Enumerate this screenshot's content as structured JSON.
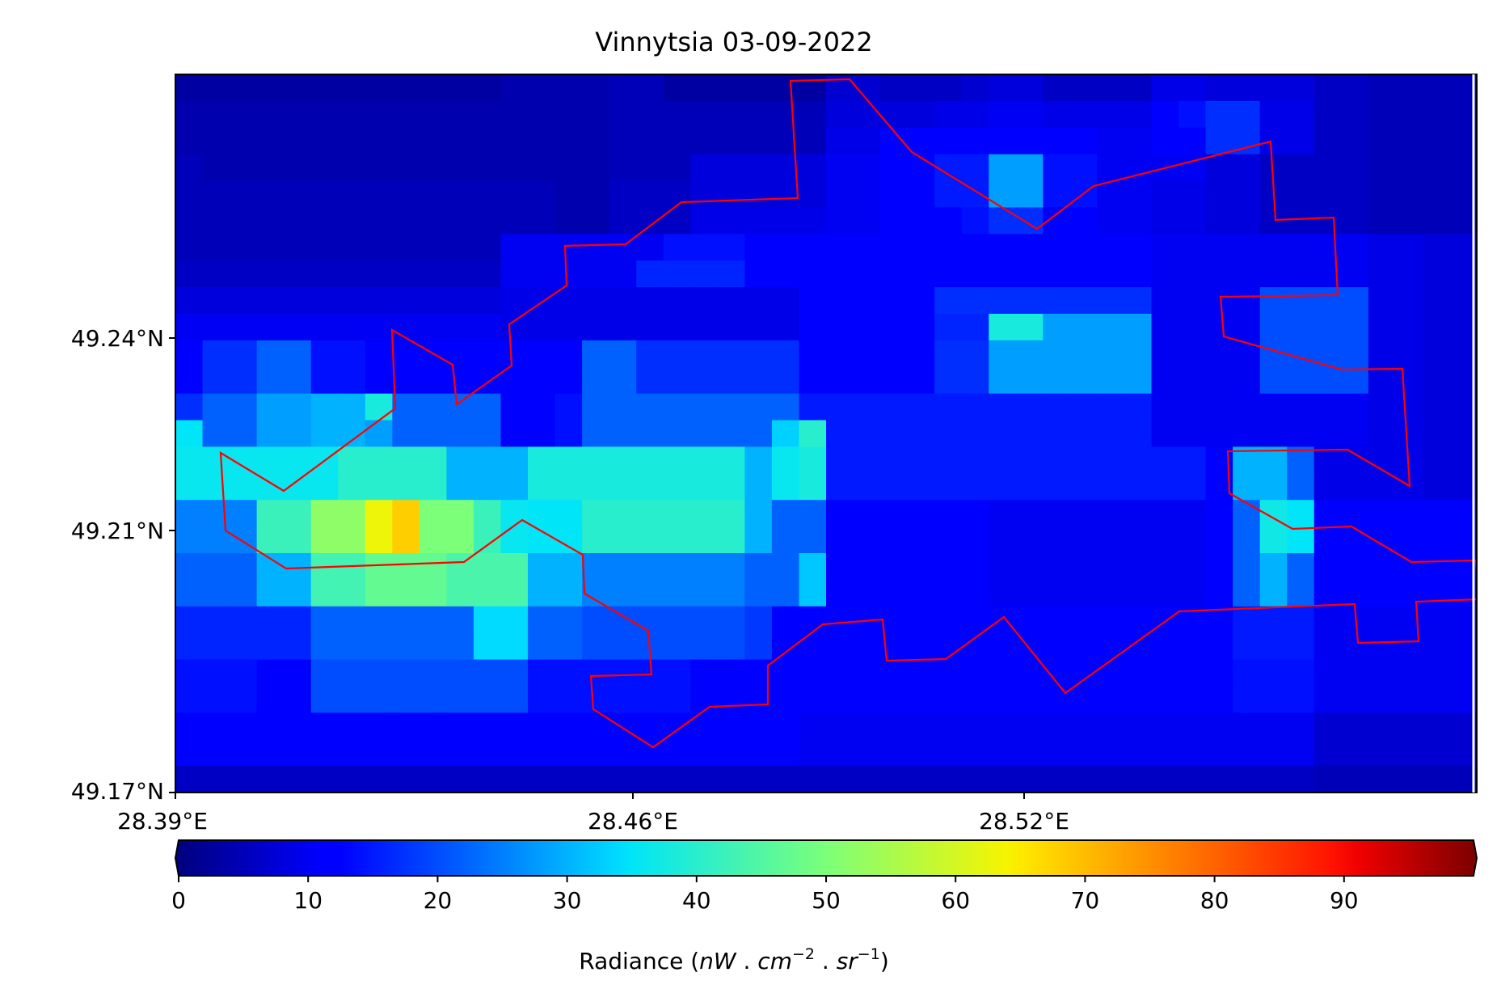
{
  "chart_data": {
    "type": "heatmap",
    "title": "Vinnytsia 03-09-2022",
    "colormap": "jet",
    "vmin": 0,
    "vmax": 100,
    "x_ticks": [
      "28.39°E",
      "28.46°E",
      "28.52°E"
    ],
    "y_ticks": [
      "49.24°N",
      "49.21°N",
      "49.17°N"
    ],
    "grid_cols": 48,
    "grid_rows": 27,
    "lon_range": [
      28.39,
      28.6
    ],
    "lat_range": [
      49.17,
      49.281
    ],
    "colorbar": {
      "ticks": [
        "0",
        "10",
        "20",
        "30",
        "40",
        "50",
        "60",
        "70",
        "80",
        "90"
      ],
      "label_prefix": "Radiance (",
      "label_nW": "nW",
      "label_dot1": " . ",
      "label_cm": "cm",
      "label_cm_exp": "−2",
      "label_dot2": " . ",
      "label_sr": "sr",
      "label_sr_exp": "−1",
      "label_suffix": ")",
      "extend": "both"
    },
    "radiance_grid": [
      [
        3,
        3,
        3,
        3,
        3,
        3,
        3,
        3,
        3,
        3,
        3,
        3,
        4,
        4,
        4,
        4,
        5,
        5,
        3,
        3,
        3,
        3,
        3,
        3,
        7,
        7,
        6,
        6,
        6,
        7,
        8,
        8,
        6,
        6,
        6,
        6,
        9,
        9,
        8,
        8,
        8,
        8,
        6,
        6,
        5,
        5,
        5,
        5
      ],
      [
        4,
        4,
        4,
        4,
        4,
        4,
        4,
        4,
        4,
        4,
        4,
        4,
        4,
        4,
        4,
        4,
        5,
        5,
        5,
        5,
        5,
        5,
        5,
        5,
        8,
        8,
        8,
        8,
        9,
        9,
        10,
        10,
        9,
        9,
        9,
        9,
        12,
        14,
        17,
        17,
        9,
        9,
        6,
        6,
        5,
        5,
        5,
        5
      ],
      [
        4,
        4,
        4,
        4,
        4,
        4,
        4,
        4,
        4,
        4,
        4,
        4,
        4,
        4,
        4,
        4,
        5,
        5,
        5,
        5,
        5,
        5,
        5,
        5,
        9,
        9,
        11,
        11,
        11,
        11,
        11,
        11,
        11,
        11,
        10,
        10,
        12,
        12,
        17,
        17,
        9,
        9,
        6,
        6,
        5,
        5,
        5,
        5
      ],
      [
        5,
        4,
        4,
        4,
        4,
        4,
        4,
        4,
        4,
        4,
        4,
        4,
        4,
        4,
        4,
        4,
        5,
        5,
        5,
        8,
        8,
        8,
        8,
        8,
        10,
        10,
        11,
        11,
        15,
        15,
        28,
        28,
        14,
        14,
        10,
        10,
        10,
        10,
        8,
        8,
        6,
        6,
        6,
        6,
        5,
        5,
        5,
        5
      ],
      [
        5,
        5,
        5,
        5,
        5,
        5,
        5,
        5,
        5,
        5,
        5,
        5,
        5,
        5,
        4,
        4,
        6,
        6,
        6,
        8,
        8,
        8,
        8,
        8,
        10,
        10,
        11,
        11,
        15,
        15,
        28,
        28,
        14,
        14,
        10,
        10,
        9,
        9,
        8,
        8,
        6,
        6,
        6,
        6,
        5,
        5,
        5,
        5
      ],
      [
        5,
        5,
        5,
        5,
        5,
        5,
        5,
        5,
        5,
        5,
        5,
        5,
        5,
        5,
        4,
        4,
        6,
        6,
        6,
        9,
        9,
        9,
        9,
        9,
        10,
        10,
        11,
        11,
        12,
        14,
        17,
        17,
        11,
        11,
        10,
        10,
        9,
        9,
        8,
        8,
        6,
        6,
        6,
        6,
        5,
        5,
        5,
        5
      ],
      [
        5,
        5,
        5,
        5,
        5,
        5,
        5,
        5,
        5,
        5,
        5,
        5,
        10,
        10,
        10,
        10,
        10,
        10,
        14,
        14,
        14,
        12,
        12,
        12,
        12,
        12,
        12,
        12,
        12,
        12,
        12,
        12,
        12,
        12,
        12,
        12,
        10,
        10,
        10,
        10,
        10,
        10,
        10,
        10,
        9,
        9,
        8,
        8
      ],
      [
        6,
        6,
        6,
        6,
        6,
        6,
        6,
        6,
        6,
        6,
        6,
        6,
        10,
        10,
        10,
        10,
        10,
        16,
        16,
        16,
        16,
        12,
        12,
        12,
        12,
        12,
        12,
        12,
        12,
        12,
        12,
        12,
        12,
        12,
        12,
        12,
        10,
        10,
        10,
        10,
        10,
        10,
        10,
        10,
        9,
        9,
        8,
        8
      ],
      [
        8,
        8,
        8,
        8,
        8,
        8,
        8,
        8,
        8,
        8,
        8,
        8,
        9,
        9,
        9,
        9,
        9,
        9,
        9,
        9,
        9,
        9,
        9,
        12,
        12,
        12,
        12,
        12,
        17,
        17,
        17,
        17,
        17,
        17,
        17,
        17,
        10,
        10,
        10,
        10,
        20,
        20,
        20,
        20,
        9,
        9,
        8,
        8
      ],
      [
        10,
        10,
        10,
        10,
        10,
        10,
        10,
        10,
        10,
        10,
        10,
        10,
        9,
        9,
        9,
        9,
        9,
        9,
        9,
        9,
        9,
        9,
        9,
        12,
        12,
        12,
        12,
        12,
        16,
        16,
        38,
        38,
        28,
        28,
        28,
        28,
        10,
        10,
        10,
        10,
        20,
        20,
        20,
        20,
        9,
        9,
        8,
        8
      ],
      [
        12,
        17,
        17,
        22,
        22,
        14,
        14,
        12,
        12,
        12,
        12,
        12,
        12,
        12,
        12,
        22,
        22,
        17,
        17,
        17,
        17,
        17,
        17,
        12,
        12,
        12,
        12,
        12,
        17,
        17,
        28,
        28,
        28,
        28,
        28,
        28,
        10,
        10,
        10,
        10,
        20,
        20,
        20,
        20,
        9,
        9,
        8,
        8
      ],
      [
        12,
        17,
        17,
        22,
        22,
        14,
        14,
        12,
        12,
        12,
        12,
        12,
        12,
        12,
        12,
        22,
        22,
        17,
        17,
        17,
        17,
        17,
        17,
        12,
        12,
        12,
        12,
        12,
        17,
        17,
        28,
        28,
        28,
        28,
        28,
        28,
        10,
        10,
        10,
        10,
        20,
        20,
        20,
        20,
        9,
        9,
        8,
        8
      ],
      [
        17,
        22,
        22,
        28,
        28,
        30,
        30,
        38,
        22,
        22,
        22,
        22,
        12,
        12,
        14,
        22,
        22,
        22,
        22,
        22,
        22,
        22,
        22,
        15,
        15,
        15,
        15,
        15,
        15,
        15,
        15,
        15,
        15,
        15,
        15,
        15,
        10,
        10,
        10,
        10,
        10,
        10,
        10,
        10,
        9,
        9,
        8,
        8
      ],
      [
        35,
        22,
        22,
        28,
        28,
        30,
        30,
        28,
        22,
        22,
        22,
        22,
        12,
        12,
        14,
        22,
        22,
        22,
        22,
        22,
        22,
        22,
        33,
        40,
        15,
        15,
        15,
        15,
        15,
        15,
        15,
        15,
        15,
        15,
        15,
        15,
        10,
        10,
        10,
        10,
        10,
        10,
        10,
        10,
        9,
        9,
        8,
        8
      ],
      [
        36,
        36,
        36,
        36,
        36,
        36,
        40,
        40,
        40,
        40,
        30,
        30,
        30,
        38,
        38,
        38,
        38,
        38,
        38,
        38,
        38,
        30,
        36,
        38,
        15,
        15,
        15,
        15,
        15,
        15,
        15,
        15,
        15,
        15,
        15,
        15,
        15,
        15,
        12,
        30,
        30,
        22,
        9,
        9,
        9,
        9,
        8,
        8
      ],
      [
        36,
        36,
        36,
        36,
        36,
        36,
        40,
        40,
        40,
        40,
        30,
        30,
        30,
        38,
        38,
        38,
        38,
        38,
        38,
        38,
        38,
        30,
        36,
        38,
        15,
        15,
        15,
        15,
        15,
        15,
        15,
        15,
        15,
        15,
        15,
        15,
        15,
        15,
        12,
        30,
        30,
        22,
        9,
        9,
        9,
        9,
        8,
        8
      ],
      [
        25,
        25,
        25,
        42,
        42,
        52,
        52,
        63,
        68,
        50,
        50,
        42,
        36,
        35,
        35,
        40,
        40,
        40,
        40,
        40,
        40,
        30,
        22,
        22,
        12,
        12,
        12,
        12,
        12,
        12,
        10,
        10,
        10,
        10,
        10,
        10,
        10,
        10,
        12,
        22,
        37,
        35,
        12,
        12,
        12,
        12,
        12,
        12
      ],
      [
        25,
        25,
        25,
        42,
        42,
        52,
        52,
        63,
        68,
        50,
        50,
        42,
        36,
        35,
        35,
        40,
        40,
        40,
        40,
        40,
        40,
        30,
        22,
        22,
        12,
        12,
        12,
        12,
        12,
        12,
        10,
        10,
        10,
        10,
        10,
        10,
        10,
        10,
        12,
        22,
        37,
        35,
        12,
        12,
        12,
        12,
        12,
        12
      ],
      [
        22,
        22,
        22,
        30,
        30,
        43,
        43,
        47,
        47,
        47,
        44,
        44,
        44,
        30,
        30,
        25,
        25,
        25,
        25,
        25,
        25,
        22,
        22,
        32,
        12,
        12,
        12,
        12,
        12,
        12,
        10,
        10,
        10,
        10,
        10,
        10,
        10,
        10,
        12,
        22,
        30,
        22,
        12,
        12,
        12,
        12,
        12,
        12
      ],
      [
        22,
        22,
        22,
        30,
        30,
        43,
        43,
        47,
        47,
        47,
        44,
        44,
        44,
        30,
        30,
        25,
        25,
        25,
        25,
        25,
        25,
        22,
        22,
        32,
        12,
        12,
        12,
        12,
        12,
        12,
        10,
        10,
        10,
        10,
        10,
        10,
        10,
        10,
        12,
        22,
        30,
        22,
        12,
        12,
        12,
        12,
        12,
        12
      ],
      [
        16,
        16,
        16,
        16,
        16,
        22,
        22,
        22,
        22,
        22,
        22,
        34,
        34,
        22,
        22,
        20,
        20,
        20,
        20,
        20,
        20,
        18,
        12,
        12,
        12,
        12,
        12,
        12,
        12,
        12,
        12,
        12,
        12,
        12,
        12,
        12,
        12,
        12,
        12,
        15,
        15,
        15,
        10,
        10,
        10,
        10,
        10,
        10
      ],
      [
        16,
        16,
        16,
        16,
        16,
        22,
        22,
        22,
        22,
        22,
        22,
        34,
        34,
        22,
        22,
        20,
        20,
        20,
        20,
        20,
        20,
        18,
        12,
        12,
        12,
        12,
        12,
        12,
        12,
        12,
        12,
        12,
        12,
        12,
        12,
        12,
        12,
        12,
        12,
        15,
        15,
        15,
        10,
        10,
        10,
        10,
        10,
        10
      ],
      [
        14,
        14,
        14,
        12,
        12,
        20,
        20,
        20,
        20,
        20,
        20,
        20,
        20,
        14,
        14,
        14,
        14,
        14,
        14,
        12,
        12,
        12,
        12,
        12,
        12,
        12,
        12,
        12,
        12,
        12,
        12,
        12,
        12,
        12,
        12,
        12,
        12,
        12,
        12,
        14,
        14,
        14,
        10,
        10,
        10,
        10,
        10,
        10
      ],
      [
        14,
        14,
        14,
        12,
        12,
        20,
        20,
        20,
        20,
        20,
        20,
        20,
        20,
        14,
        14,
        14,
        14,
        14,
        14,
        12,
        12,
        12,
        12,
        12,
        12,
        12,
        12,
        12,
        12,
        12,
        12,
        12,
        12,
        12,
        12,
        12,
        12,
        12,
        12,
        14,
        14,
        14,
        10,
        10,
        10,
        10,
        10,
        10
      ],
      [
        11,
        11,
        11,
        11,
        11,
        11,
        11,
        11,
        11,
        11,
        11,
        11,
        11,
        11,
        11,
        11,
        11,
        11,
        11,
        11,
        11,
        11,
        11,
        10,
        10,
        10,
        10,
        10,
        10,
        10,
        10,
        10,
        10,
        10,
        10,
        10,
        10,
        10,
        10,
        10,
        10,
        10,
        7,
        7,
        7,
        7,
        7,
        7
      ],
      [
        11,
        11,
        11,
        11,
        11,
        11,
        11,
        11,
        11,
        11,
        11,
        11,
        11,
        11,
        11,
        11,
        11,
        11,
        11,
        11,
        11,
        11,
        11,
        10,
        10,
        10,
        10,
        10,
        10,
        10,
        10,
        10,
        10,
        10,
        10,
        10,
        10,
        10,
        10,
        10,
        10,
        10,
        7,
        7,
        7,
        7,
        7,
        7
      ],
      [
        6,
        6,
        6,
        6,
        6,
        6,
        6,
        6,
        6,
        6,
        6,
        6,
        6,
        6,
        6,
        6,
        6,
        6,
        6,
        6,
        6,
        6,
        6,
        6,
        6,
        6,
        6,
        6,
        6,
        6,
        6,
        6,
        6,
        6,
        6,
        6,
        6,
        6,
        6,
        6,
        6,
        6,
        5,
        5,
        5,
        5,
        5,
        5
      ]
    ]
  }
}
